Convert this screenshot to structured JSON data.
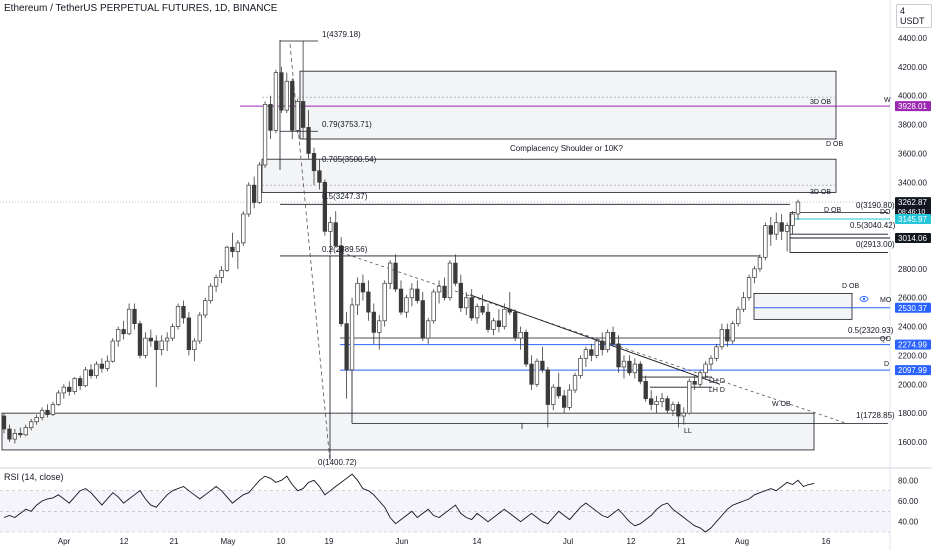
{
  "header": {
    "title": "Ethereum / TetherUS PERPETUAL FUTURES, 1D, BINANCE",
    "currency": "4 USDT"
  },
  "rsi": {
    "title": "RSI (14, close)",
    "ticks": [
      "80.00",
      "60.00",
      "40.00"
    ]
  },
  "colors": {
    "up": "#ffffff",
    "down": "#3a3a3a",
    "wick": "#3a3a3a",
    "blue": "#2962ff",
    "purple": "#9c27b0",
    "teal": "#26c6da",
    "ob_fill": "#f3f4f6"
  },
  "chart_data": {
    "type": "candlestick",
    "title": "Ethereum / TetherUS PERPETUAL FUTURES, 1D, BINANCE",
    "x_ticks": [
      "Apr",
      "12",
      "21",
      "May",
      "10",
      "19",
      "Jun",
      "14",
      "Jul",
      "12",
      "21",
      "Aug",
      "16"
    ],
    "y_ticks": [
      "4400.00",
      "4200.00",
      "4000.00",
      "3800.00",
      "3600.00",
      "3400.00",
      "3200.00",
      "3000.00",
      "2800.00",
      "2600.00",
      "2400.00",
      "2200.00",
      "2000.00",
      "1800.00",
      "1600.00"
    ],
    "ylim": [
      1500,
      4500
    ],
    "price_labels": [
      {
        "value": 3262.87,
        "text": "3262.87",
        "sub": "08:46:10",
        "style": "dark"
      },
      {
        "value": 3145.97,
        "text": "3145.97",
        "style": "teal"
      },
      {
        "value": 3014.06,
        "text": "3014.06",
        "style": "dark"
      },
      {
        "value": 3928.01,
        "text": "3928.01",
        "style": "purple"
      },
      {
        "value": 2530.37,
        "text": "2530.37",
        "style": "blue"
      },
      {
        "value": 2274.99,
        "text": "2274.99",
        "style": "blue"
      },
      {
        "value": 2097.99,
        "text": "2097.99",
        "style": "blue"
      }
    ],
    "fib_labels": [
      {
        "text": "1(4379.18)"
      },
      {
        "text": "0.79(3753.71)"
      },
      {
        "text": "0.705(3500.54)"
      },
      {
        "text": "0.5(3247.37)"
      },
      {
        "text": "0.2(2889.56)"
      },
      {
        "text": "0(1400.72)"
      },
      {
        "text": "0(3190.80)"
      },
      {
        "text": "0.5(3040.42)"
      },
      {
        "text": "0(2913.00)"
      },
      {
        "text": "0.5(2320.93)"
      },
      {
        "text": "1(1728.85)"
      }
    ],
    "annotations": [
      {
        "text": "Complacency Shoulder or 10K?"
      },
      {
        "text": "3D OB"
      },
      {
        "text": "D OB"
      },
      {
        "text": "3D OB"
      },
      {
        "text": "D OB"
      },
      {
        "text": "D OB"
      },
      {
        "text": "W OB"
      },
      {
        "text": "W"
      },
      {
        "text": "DO"
      },
      {
        "text": "MO"
      },
      {
        "text": "QO"
      },
      {
        "text": "D"
      },
      {
        "text": "LH D"
      },
      {
        "text": "LH D"
      },
      {
        "text": "LL"
      }
    ],
    "rsi_values": [
      44,
      46,
      44,
      48,
      52,
      50,
      56,
      60,
      62,
      63,
      66,
      62,
      58,
      64,
      70,
      72,
      68,
      62,
      56,
      62,
      68,
      64,
      58,
      62,
      66,
      70,
      62,
      56,
      54,
      60,
      66,
      70,
      72,
      74,
      70,
      66,
      62,
      66,
      70,
      74,
      70,
      64,
      58,
      62,
      66,
      68,
      74,
      80,
      84,
      82,
      78,
      80,
      84,
      76,
      70,
      72,
      78,
      80,
      74,
      66,
      70,
      74,
      78,
      82,
      86,
      80,
      72,
      70,
      66,
      60,
      54,
      44,
      38,
      42,
      46,
      50,
      44,
      48,
      52,
      46,
      44,
      48,
      52,
      56,
      48,
      44,
      42,
      48,
      44,
      40,
      44,
      48,
      52,
      48,
      44,
      40,
      44,
      48,
      44,
      40,
      38,
      44,
      50,
      46,
      42,
      48,
      54,
      58,
      54,
      50,
      46,
      44,
      48,
      52,
      46,
      40,
      36,
      38,
      42,
      46,
      52,
      56,
      58,
      52,
      48,
      44,
      40,
      36,
      34,
      30,
      34,
      40,
      46,
      52,
      56,
      58,
      60,
      62,
      66,
      68,
      70,
      72,
      70,
      74,
      78,
      76,
      80,
      74,
      76,
      77
    ],
    "candles_ohlc": [
      [
        1780,
        1800,
        1660,
        1690
      ],
      [
        1690,
        1720,
        1600,
        1620
      ],
      [
        1620,
        1690,
        1590,
        1660
      ],
      [
        1660,
        1700,
        1630,
        1650
      ],
      [
        1650,
        1720,
        1640,
        1700
      ],
      [
        1700,
        1760,
        1680,
        1740
      ],
      [
        1740,
        1790,
        1720,
        1770
      ],
      [
        1770,
        1840,
        1750,
        1820
      ],
      [
        1820,
        1860,
        1770,
        1790
      ],
      [
        1790,
        1880,
        1780,
        1860
      ],
      [
        1860,
        1960,
        1850,
        1940
      ],
      [
        1940,
        2000,
        1900,
        1980
      ],
      [
        1980,
        2020,
        1920,
        1950
      ],
      [
        1950,
        2050,
        1930,
        2040
      ],
      [
        2040,
        2060,
        1960,
        1990
      ],
      [
        1990,
        2120,
        1980,
        2100
      ],
      [
        2100,
        2140,
        2040,
        2060
      ],
      [
        2060,
        2160,
        2040,
        2140
      ],
      [
        2140,
        2180,
        2080,
        2110
      ],
      [
        2110,
        2200,
        2090,
        2160
      ],
      [
        2160,
        2320,
        2150,
        2300
      ],
      [
        2300,
        2400,
        2260,
        2380
      ],
      [
        2380,
        2440,
        2310,
        2350
      ],
      [
        2350,
        2560,
        2340,
        2520
      ],
      [
        2520,
        2560,
        2380,
        2420
      ],
      [
        2420,
        2440,
        2180,
        2200
      ],
      [
        2200,
        2360,
        2180,
        2320
      ],
      [
        2320,
        2380,
        2260,
        2300
      ],
      [
        2300,
        2340,
        1980,
        2240
      ],
      [
        2240,
        2340,
        2200,
        2300
      ],
      [
        2300,
        2360,
        2230,
        2320
      ],
      [
        2320,
        2420,
        2300,
        2400
      ],
      [
        2400,
        2560,
        2380,
        2540
      ],
      [
        2540,
        2580,
        2420,
        2460
      ],
      [
        2460,
        2500,
        2200,
        2240
      ],
      [
        2240,
        2320,
        2160,
        2300
      ],
      [
        2300,
        2500,
        2280,
        2480
      ],
      [
        2480,
        2600,
        2460,
        2580
      ],
      [
        2580,
        2700,
        2560,
        2680
      ],
      [
        2680,
        2760,
        2640,
        2740
      ],
      [
        2740,
        2820,
        2700,
        2790
      ],
      [
        2790,
        2960,
        2780,
        2950
      ],
      [
        2950,
        3050,
        2880,
        2920
      ],
      [
        2920,
        3000,
        2800,
        2980
      ],
      [
        2980,
        3200,
        2960,
        3180
      ],
      [
        3180,
        3400,
        3160,
        3380
      ],
      [
        3380,
        3440,
        3220,
        3260
      ],
      [
        3260,
        3540,
        3250,
        3520
      ],
      [
        3520,
        3960,
        3500,
        3940
      ],
      [
        3940,
        4000,
        3700,
        3760
      ],
      [
        3760,
        4180,
        3740,
        4160
      ],
      [
        4160,
        4200,
        3880,
        3900
      ],
      [
        3900,
        4160,
        3880,
        4100
      ],
      [
        4100,
        4120,
        3700,
        3760
      ],
      [
        3760,
        3980,
        3740,
        3960
      ],
      [
        3960,
        4380,
        3700,
        3780
      ],
      [
        3780,
        3900,
        3560,
        3600
      ],
      [
        3600,
        3640,
        3380,
        3480
      ],
      [
        3480,
        3560,
        3350,
        3400
      ],
      [
        3400,
        3420,
        3030,
        3060
      ],
      [
        3060,
        3160,
        2900,
        3120
      ],
      [
        3120,
        3200,
        2950,
        2960
      ],
      [
        2960,
        3020,
        2400,
        2420
      ],
      [
        2420,
        2500,
        1900,
        2100
      ],
      [
        2100,
        2600,
        1900,
        2550
      ],
      [
        2550,
        2740,
        2480,
        2700
      ],
      [
        2700,
        2760,
        2580,
        2640
      ],
      [
        2640,
        2720,
        2440,
        2500
      ],
      [
        2500,
        2560,
        2280,
        2360
      ],
      [
        2360,
        2480,
        2240,
        2440
      ],
      [
        2440,
        2720,
        2400,
        2700
      ],
      [
        2700,
        2860,
        2660,
        2840
      ],
      [
        2840,
        2900,
        2640,
        2660
      ],
      [
        2660,
        2720,
        2480,
        2500
      ],
      [
        2500,
        2620,
        2460,
        2600
      ],
      [
        2600,
        2700,
        2540,
        2660
      ],
      [
        2660,
        2720,
        2560,
        2580
      ],
      [
        2580,
        2640,
        2300,
        2320
      ],
      [
        2320,
        2460,
        2280,
        2440
      ],
      [
        2440,
        2660,
        2420,
        2640
      ],
      [
        2640,
        2720,
        2560,
        2680
      ],
      [
        2680,
        2740,
        2580,
        2600
      ],
      [
        2600,
        2860,
        2580,
        2840
      ],
      [
        2840,
        2900,
        2680,
        2700
      ],
      [
        2700,
        2760,
        2500,
        2530
      ],
      [
        2530,
        2640,
        2480,
        2600
      ],
      [
        2600,
        2660,
        2440,
        2460
      ],
      [
        2460,
        2560,
        2420,
        2540
      ],
      [
        2540,
        2620,
        2480,
        2500
      ],
      [
        2500,
        2560,
        2360,
        2380
      ],
      [
        2380,
        2460,
        2340,
        2440
      ],
      [
        2440,
        2520,
        2360,
        2400
      ],
      [
        2400,
        2560,
        2380,
        2520
      ],
      [
        2520,
        2640,
        2480,
        2500
      ],
      [
        2500,
        2520,
        2300,
        2320
      ],
      [
        2320,
        2400,
        2240,
        2360
      ],
      [
        2360,
        2380,
        2120,
        2140
      ],
      [
        2140,
        2200,
        1960,
        2000
      ],
      [
        2000,
        2180,
        1980,
        2160
      ],
      [
        2160,
        2260,
        2080,
        2100
      ],
      [
        2100,
        2120,
        1700,
        1860
      ],
      [
        1860,
        2000,
        1820,
        1980
      ],
      [
        1980,
        2080,
        1900,
        1920
      ],
      [
        1920,
        1960,
        1800,
        1840
      ],
      [
        1840,
        2000,
        1820,
        1960
      ],
      [
        1960,
        2080,
        1940,
        2060
      ],
      [
        2060,
        2200,
        2040,
        2180
      ],
      [
        2180,
        2260,
        2120,
        2240
      ],
      [
        2240,
        2280,
        2160,
        2200
      ],
      [
        2200,
        2320,
        2180,
        2300
      ],
      [
        2300,
        2360,
        2200,
        2240
      ],
      [
        2240,
        2380,
        2220,
        2360
      ],
      [
        2360,
        2400,
        2260,
        2280
      ],
      [
        2280,
        2340,
        2080,
        2120
      ],
      [
        2120,
        2200,
        2040,
        2160
      ],
      [
        2160,
        2200,
        2060,
        2080
      ],
      [
        2080,
        2180,
        2040,
        2140
      ],
      [
        2140,
        2160,
        2000,
        2020
      ],
      [
        2020,
        2060,
        1880,
        1900
      ],
      [
        1900,
        1960,
        1820,
        1860
      ],
      [
        1860,
        1920,
        1800,
        1880
      ],
      [
        1880,
        1940,
        1840,
        1900
      ],
      [
        1900,
        1920,
        1800,
        1820
      ],
      [
        1820,
        1880,
        1780,
        1860
      ],
      [
        1860,
        1880,
        1700,
        1780
      ],
      [
        1780,
        1840,
        1720,
        1800
      ],
      [
        1800,
        2040,
        1790,
        2020
      ],
      [
        2020,
        2060,
        1960,
        2000
      ],
      [
        2000,
        2100,
        1980,
        2080
      ],
      [
        2080,
        2160,
        2040,
        2140
      ],
      [
        2140,
        2200,
        2100,
        2180
      ],
      [
        2180,
        2280,
        2160,
        2260
      ],
      [
        2260,
        2420,
        2240,
        2380
      ],
      [
        2380,
        2420,
        2260,
        2300
      ],
      [
        2300,
        2440,
        2280,
        2420
      ],
      [
        2420,
        2540,
        2400,
        2520
      ],
      [
        2520,
        2640,
        2500,
        2600
      ],
      [
        2600,
        2760,
        2580,
        2740
      ],
      [
        2740,
        2820,
        2700,
        2800
      ],
      [
        2800,
        2900,
        2780,
        2880
      ],
      [
        2880,
        3120,
        2860,
        3100
      ],
      [
        3100,
        3160,
        2960,
        3040
      ],
      [
        3040,
        3190,
        3000,
        3120
      ],
      [
        3120,
        3180,
        3000,
        3060
      ],
      [
        3060,
        3120,
        2920,
        3100
      ],
      [
        3100,
        3200,
        3040,
        3180
      ],
      [
        3180,
        3280,
        3140,
        3262.87
      ]
    ],
    "xlabel": "",
    "ylabel": ""
  }
}
